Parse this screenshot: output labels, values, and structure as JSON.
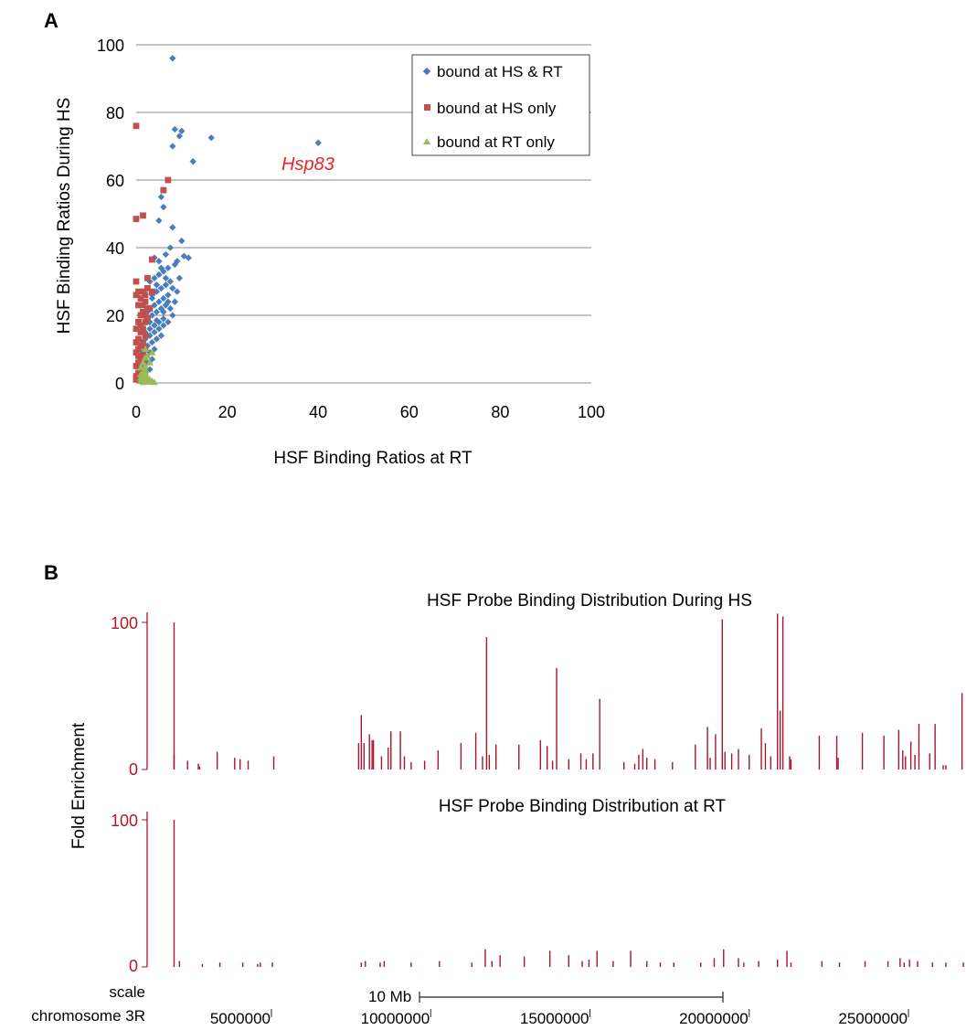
{
  "chart_data": [
    {
      "panel": "A",
      "type": "scatter",
      "title": "",
      "xlabel": "HSF Binding Ratios at RT",
      "ylabel": "HSF Binding Ratios During HS",
      "xlim": [
        0,
        100
      ],
      "ylim": [
        0,
        100
      ],
      "x_ticks": [
        "0",
        "20",
        "40",
        "60",
        "80",
        "100"
      ],
      "y_ticks": [
        "0",
        "20",
        "40",
        "60",
        "80",
        "100"
      ],
      "grid": "horizontal",
      "legend_position": "top-right",
      "annotation": {
        "text": "Hsp83",
        "x": 37,
        "y": 66,
        "color": "#e8262a"
      },
      "series": [
        {
          "name": "bound at HS & RT",
          "marker": "diamond",
          "color": "#4a7ebb",
          "points": [
            [
              8,
              96
            ],
            [
              8.5,
              75
            ],
            [
              9.5,
              73
            ],
            [
              10,
              74.5
            ],
            [
              16.5,
              72.5
            ],
            [
              12.5,
              65.5
            ],
            [
              8,
              70
            ],
            [
              40,
              71
            ],
            [
              5.5,
              55
            ],
            [
              6,
              52
            ],
            [
              5,
              48
            ],
            [
              8,
              46
            ],
            [
              10,
              42
            ],
            [
              7.5,
              40
            ],
            [
              4,
              37
            ],
            [
              5,
              36
            ],
            [
              6.5,
              38
            ],
            [
              10.5,
              37.5
            ],
            [
              11.5,
              37
            ],
            [
              9,
              36
            ],
            [
              8.5,
              35
            ],
            [
              7,
              34
            ],
            [
              6,
              33
            ],
            [
              5,
              32
            ],
            [
              4,
              31
            ],
            [
              3,
              30
            ],
            [
              9.5,
              31
            ],
            [
              7.5,
              30
            ],
            [
              6.5,
              29
            ],
            [
              5.5,
              28
            ],
            [
              4.5,
              27
            ],
            [
              3.5,
              26
            ],
            [
              8,
              28
            ],
            [
              7,
              26
            ],
            [
              6,
              25
            ],
            [
              5,
              24
            ],
            [
              4,
              23
            ],
            [
              3,
              22
            ],
            [
              2.5,
              21
            ],
            [
              6.5,
              23
            ],
            [
              5.5,
              22
            ],
            [
              4.5,
              21
            ],
            [
              3.5,
              20
            ],
            [
              2.5,
              19
            ],
            [
              7.5,
              22
            ],
            [
              8,
              20
            ],
            [
              6,
              19
            ],
            [
              5,
              18
            ],
            [
              4,
              17
            ],
            [
              3,
              16
            ],
            [
              2,
              15
            ],
            [
              7,
              18
            ],
            [
              6,
              17
            ],
            [
              5,
              16
            ],
            [
              4,
              15
            ],
            [
              3,
              14
            ],
            [
              2,
              13
            ],
            [
              5.5,
              14
            ],
            [
              4.5,
              13
            ],
            [
              3.5,
              12
            ],
            [
              2.5,
              11
            ],
            [
              4,
              10
            ],
            [
              3,
              9
            ],
            [
              2,
              8
            ],
            [
              3.5,
              7
            ],
            [
              2.5,
              6
            ],
            [
              1.5,
              5
            ],
            [
              3,
              4
            ],
            [
              2,
              3
            ],
            [
              1,
              2
            ],
            [
              4.5,
              18.5
            ],
            [
              6,
              21
            ],
            [
              7,
              24
            ],
            [
              3.5,
              25
            ],
            [
              4.5,
              29
            ],
            [
              5.5,
              34
            ],
            [
              6.5,
              31
            ],
            [
              8.5,
              24
            ],
            [
              9,
              27
            ],
            [
              3,
              18
            ],
            [
              2,
              11
            ],
            [
              1.5,
              9
            ]
          ]
        },
        {
          "name": "bound at HS only",
          "marker": "square",
          "color": "#c0504d",
          "points": [
            [
              0,
              76
            ],
            [
              0,
              48.5
            ],
            [
              1.5,
              49.5
            ],
            [
              7,
              60
            ],
            [
              6,
              57
            ],
            [
              0,
              30
            ],
            [
              0,
              26
            ],
            [
              0.5,
              23
            ],
            [
              1,
              25
            ],
            [
              1.5,
              27
            ],
            [
              2,
              26
            ],
            [
              2.5,
              28
            ],
            [
              3.5,
              27
            ],
            [
              2,
              24
            ],
            [
              2.5,
              22
            ],
            [
              1.5,
              21
            ],
            [
              1,
              20
            ],
            [
              0.5,
              18
            ],
            [
              0,
              16
            ],
            [
              2,
              18
            ],
            [
              1.5,
              16
            ],
            [
              1,
              15
            ],
            [
              0.5,
              13
            ],
            [
              0,
              12
            ],
            [
              2,
              14
            ],
            [
              1.5,
              12
            ],
            [
              1,
              11
            ],
            [
              0.5,
              10
            ],
            [
              0,
              9
            ],
            [
              1.5,
              8
            ],
            [
              1,
              7
            ],
            [
              0.5,
              6
            ],
            [
              0,
              5
            ],
            [
              1,
              4
            ],
            [
              0.5,
              3
            ],
            [
              0,
              2
            ],
            [
              0,
              1
            ],
            [
              3,
              22
            ],
            [
              2.5,
              19
            ],
            [
              2,
              10
            ],
            [
              1.5,
              6
            ],
            [
              1,
              3
            ],
            [
              3.5,
              36.5
            ],
            [
              2.5,
              31
            ],
            [
              0.5,
              27
            ],
            [
              1,
              17
            ],
            [
              2,
              20
            ],
            [
              1.5,
              23
            ],
            [
              0.5,
              8
            ]
          ]
        },
        {
          "name": "bound at RT only",
          "marker": "triangle",
          "color": "#9bbb59",
          "points": [
            [
              2,
              10
            ],
            [
              3.5,
              9
            ],
            [
              2.5,
              8
            ],
            [
              2,
              7.5
            ],
            [
              1.5,
              6
            ],
            [
              2,
              5
            ],
            [
              1,
              4.5
            ],
            [
              2,
              4
            ],
            [
              1.5,
              3
            ],
            [
              1,
              2.5
            ],
            [
              2,
              2
            ],
            [
              2.5,
              1.5
            ],
            [
              3,
              1
            ],
            [
              1.5,
              1
            ],
            [
              2,
              0.5
            ],
            [
              1,
              0.5
            ],
            [
              3.5,
              0.5
            ],
            [
              4,
              0.2
            ],
            [
              2.5,
              0.3
            ],
            [
              1.5,
              0.2
            ],
            [
              1,
              1.5
            ],
            [
              2,
              3
            ],
            [
              3,
              6
            ],
            [
              1.5,
              2
            ]
          ]
        }
      ]
    },
    {
      "panel": "B",
      "type": "bar",
      "title": "HSF Probe Binding Distribution During HS",
      "ylabel": "Fold Enrichment",
      "ylim": [
        0,
        100
      ],
      "y_ticks": [
        "0",
        "100"
      ],
      "xlim": [
        1,
        28000000
      ],
      "color": "#a8152d",
      "values_note_positions_in_bp": true,
      "bars": [
        [
          2,
          100
        ],
        [
          2,
          10
        ],
        [
          3,
          6
        ],
        [
          3.8,
          4
        ],
        [
          3.9,
          2
        ],
        [
          5.2,
          12
        ],
        [
          6.5,
          8
        ],
        [
          6.9,
          7
        ],
        [
          7.5,
          6
        ],
        [
          9.4,
          9
        ],
        [
          15.7,
          18
        ],
        [
          15.9,
          37
        ],
        [
          16.1,
          18
        ],
        [
          16.5,
          24
        ],
        [
          16.7,
          20
        ],
        [
          16.8,
          20
        ],
        [
          17.4,
          9
        ],
        [
          17.9,
          15
        ],
        [
          18.1,
          26
        ],
        [
          18.8,
          26
        ],
        [
          19.1,
          9
        ],
        [
          19.6,
          5
        ],
        [
          20.6,
          6
        ],
        [
          21.6,
          13
        ],
        [
          23.3,
          18
        ],
        [
          24.4,
          25
        ],
        [
          24.9,
          9
        ],
        [
          25.2,
          90
        ],
        [
          25.4,
          10
        ],
        [
          25.9,
          17
        ],
        [
          27.6,
          17
        ],
        [
          29.2,
          20
        ],
        [
          29.7,
          16
        ],
        [
          30.1,
          6
        ],
        [
          30.4,
          69
        ],
        [
          31.3,
          7
        ],
        [
          32.2,
          11
        ],
        [
          32.6,
          7
        ],
        [
          33.1,
          11
        ],
        [
          33.6,
          48
        ],
        [
          35.4,
          5
        ],
        [
          36.2,
          4
        ],
        [
          36.5,
          10
        ],
        [
          36.8,
          14
        ],
        [
          37.1,
          8
        ],
        [
          37.7,
          7
        ],
        [
          39.0,
          5
        ],
        [
          40.7,
          17
        ],
        [
          41.6,
          29
        ],
        [
          41.8,
          8
        ],
        [
          42.2,
          24
        ],
        [
          42.7,
          102
        ],
        [
          42.9,
          12
        ],
        [
          43.4,
          11
        ],
        [
          43.9,
          14
        ],
        [
          44.7,
          10
        ],
        [
          45.6,
          28
        ],
        [
          45.9,
          18
        ],
        [
          46.3,
          9
        ],
        [
          46.8,
          106
        ],
        [
          47.0,
          40
        ],
        [
          47.2,
          104
        ],
        [
          47.7,
          9
        ],
        [
          47.8,
          7
        ],
        [
          49.9,
          23
        ],
        [
          51.2,
          23
        ],
        [
          51.3,
          8
        ],
        [
          53.1,
          25
        ],
        [
          54.7,
          23
        ],
        [
          55.8,
          27
        ],
        [
          56.1,
          13
        ],
        [
          56.3,
          9
        ],
        [
          56.7,
          19
        ],
        [
          57.0,
          10
        ],
        [
          57.3,
          31
        ],
        [
          58.1,
          11
        ],
        [
          58.5,
          31
        ],
        [
          59.1,
          3
        ],
        [
          59.3,
          3
        ],
        [
          60.5,
          52
        ]
      ]
    },
    {
      "panel": "B",
      "type": "bar",
      "title": "HSF Probe Binding Distribution at RT",
      "ylabel": "Fold Enrichment",
      "ylim": [
        0,
        100
      ],
      "y_ticks": [
        "0",
        "100"
      ],
      "color": "#a8152d",
      "bars": [
        [
          2,
          100
        ],
        [
          2.4,
          4
        ],
        [
          4.1,
          2
        ],
        [
          5.4,
          3
        ],
        [
          7.1,
          3
        ],
        [
          8.2,
          2
        ],
        [
          8.4,
          3
        ],
        [
          9.3,
          3
        ],
        [
          15.9,
          3
        ],
        [
          16.2,
          4
        ],
        [
          17.3,
          3
        ],
        [
          17.6,
          4
        ],
        [
          19.6,
          3
        ],
        [
          21.7,
          4
        ],
        [
          24.1,
          3
        ],
        [
          25.1,
          12
        ],
        [
          25.6,
          4
        ],
        [
          26.2,
          8
        ],
        [
          28.0,
          7
        ],
        [
          29.9,
          11
        ],
        [
          31.3,
          8
        ],
        [
          32.3,
          4
        ],
        [
          32.8,
          5
        ],
        [
          33.4,
          11
        ],
        [
          34.6,
          4
        ],
        [
          35.9,
          11
        ],
        [
          37.1,
          4
        ],
        [
          38.1,
          3
        ],
        [
          39.1,
          3
        ],
        [
          41.1,
          3
        ],
        [
          42.1,
          6
        ],
        [
          42.8,
          12
        ],
        [
          43.9,
          6
        ],
        [
          44.3,
          3
        ],
        [
          45.4,
          4
        ],
        [
          46.8,
          5
        ],
        [
          47.5,
          11
        ],
        [
          47.8,
          3
        ],
        [
          50.1,
          4
        ],
        [
          51.4,
          3
        ],
        [
          53.3,
          4
        ],
        [
          55.0,
          4
        ],
        [
          55.9,
          6
        ],
        [
          56.2,
          3
        ],
        [
          56.6,
          5
        ],
        [
          57.2,
          4
        ],
        [
          58.3,
          3
        ],
        [
          59.3,
          3
        ],
        [
          60.6,
          3
        ]
      ]
    }
  ],
  "panel_a": {
    "letter": "A"
  },
  "panel_b": {
    "letter": "B",
    "scale_label": "scale",
    "scale_bar_label": "10 Mb",
    "chromosome_label": "chromosome 3R",
    "chromosome_ticks": [
      "5000000",
      "10000000",
      "15000000",
      "20000000",
      "25000000"
    ]
  }
}
